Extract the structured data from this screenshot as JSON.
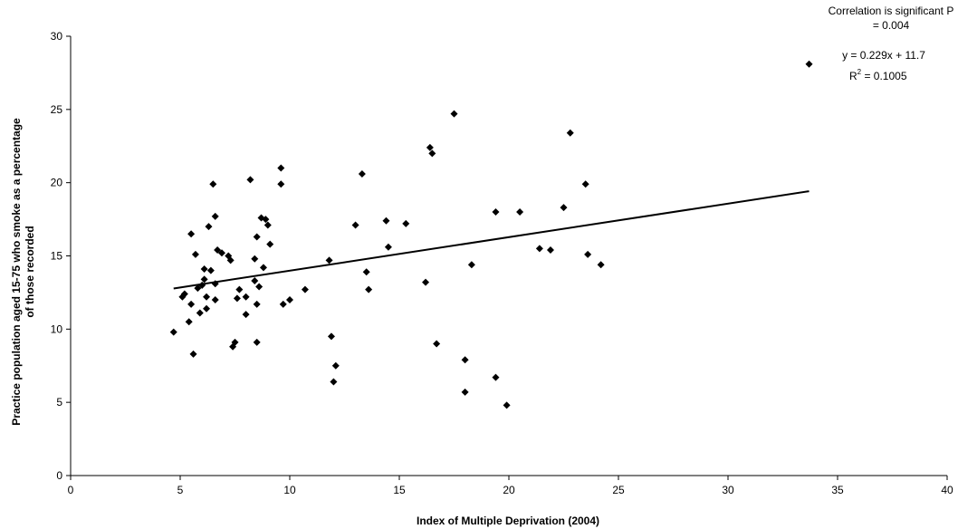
{
  "chart_data": {
    "type": "scatter",
    "xlabel": "Index of Multiple Deprivation (2004)",
    "ylabel_lines": [
      "Practice population aged 15-75 who smoke as a percentage",
      "of those recorded"
    ],
    "xlim": [
      0,
      40
    ],
    "ylim": [
      0,
      30
    ],
    "xticks": [
      0,
      5,
      10,
      15,
      20,
      25,
      30,
      35,
      40
    ],
    "yticks": [
      0,
      5,
      10,
      15,
      20,
      25,
      30
    ],
    "grid": false,
    "marker": "diamond",
    "marker_color": "#000000",
    "points": [
      [
        4.7,
        9.8
      ],
      [
        5.1,
        12.2
      ],
      [
        5.2,
        12.4
      ],
      [
        5.4,
        10.5
      ],
      [
        5.5,
        11.7
      ],
      [
        5.5,
        16.5
      ],
      [
        5.6,
        8.3
      ],
      [
        5.7,
        15.1
      ],
      [
        5.8,
        12.8
      ],
      [
        5.9,
        11.1
      ],
      [
        6.0,
        13.0
      ],
      [
        6.1,
        13.4
      ],
      [
        6.1,
        14.1
      ],
      [
        6.2,
        12.2
      ],
      [
        6.2,
        11.4
      ],
      [
        6.3,
        17.0
      ],
      [
        6.4,
        14.0
      ],
      [
        6.5,
        19.9
      ],
      [
        6.6,
        12.0
      ],
      [
        6.6,
        17.7
      ],
      [
        6.6,
        13.1
      ],
      [
        6.7,
        15.4
      ],
      [
        6.9,
        15.2
      ],
      [
        7.2,
        15.0
      ],
      [
        7.3,
        14.7
      ],
      [
        7.4,
        8.8
      ],
      [
        7.5,
        9.1
      ],
      [
        7.6,
        12.1
      ],
      [
        7.7,
        12.7
      ],
      [
        8.0,
        12.2
      ],
      [
        8.0,
        11.0
      ],
      [
        8.2,
        20.2
      ],
      [
        8.4,
        13.3
      ],
      [
        8.4,
        14.8
      ],
      [
        8.5,
        16.3
      ],
      [
        8.5,
        11.7
      ],
      [
        8.5,
        9.1
      ],
      [
        8.6,
        12.9
      ],
      [
        8.7,
        17.6
      ],
      [
        8.8,
        14.2
      ],
      [
        8.9,
        17.5
      ],
      [
        9.0,
        17.1
      ],
      [
        9.1,
        15.8
      ],
      [
        9.6,
        21.0
      ],
      [
        9.6,
        19.9
      ],
      [
        9.7,
        11.7
      ],
      [
        10.0,
        12.0
      ],
      [
        10.7,
        12.7
      ],
      [
        11.8,
        14.7
      ],
      [
        11.9,
        9.5
      ],
      [
        12.0,
        6.4
      ],
      [
        12.1,
        7.5
      ],
      [
        13.0,
        17.1
      ],
      [
        13.3,
        20.6
      ],
      [
        13.5,
        13.9
      ],
      [
        13.6,
        12.7
      ],
      [
        14.4,
        17.4
      ],
      [
        14.5,
        15.6
      ],
      [
        15.3,
        17.2
      ],
      [
        16.2,
        13.2
      ],
      [
        16.4,
        22.4
      ],
      [
        16.5,
        22.0
      ],
      [
        16.7,
        9.0
      ],
      [
        17.5,
        24.7
      ],
      [
        18.0,
        7.9
      ],
      [
        18.0,
        5.7
      ],
      [
        18.3,
        14.4
      ],
      [
        19.4,
        18.0
      ],
      [
        19.4,
        6.7
      ],
      [
        19.9,
        4.8
      ],
      [
        20.5,
        18.0
      ],
      [
        21.4,
        15.5
      ],
      [
        21.9,
        15.4
      ],
      [
        22.5,
        18.3
      ],
      [
        22.8,
        23.4
      ],
      [
        23.5,
        19.9
      ],
      [
        23.6,
        15.1
      ],
      [
        24.2,
        14.4
      ],
      [
        33.7,
        28.1
      ]
    ],
    "trendline": {
      "slope": 0.229,
      "intercept": 11.7,
      "x_range": [
        4.7,
        33.7
      ]
    },
    "annotations": {
      "significance_line1": "Correlation is significant P",
      "significance_line2": "= 0.004",
      "equation": "y = 0.229x + 11.7",
      "r2_prefix": "R",
      "r2_sup": "2",
      "r2_suffix": " = 0.1005"
    }
  }
}
